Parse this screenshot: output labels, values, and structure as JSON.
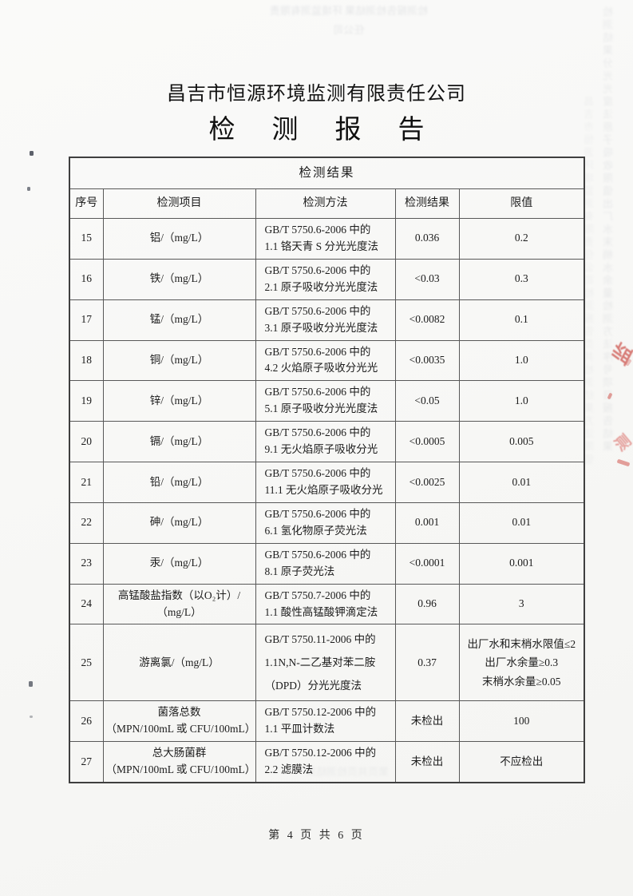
{
  "header": {
    "company": "昌吉市恒源环境监测有限责任公司",
    "report_title": "检测报告"
  },
  "table": {
    "title": "检测结果",
    "headers": [
      "序号",
      "检测项目",
      "检测方法",
      "检测结果",
      "限值"
    ],
    "rows": [
      {
        "no": "15",
        "item": "铝/（mg/L）",
        "method": "GB/T 5750.6-2006 中的\n1.1 铬天青 S 分光光度法",
        "result": "0.036",
        "limit": "0.2"
      },
      {
        "no": "16",
        "item": "铁/（mg/L）",
        "method": "GB/T 5750.6-2006 中的\n2.1 原子吸收分光光度法",
        "result": "<0.03",
        "limit": "0.3"
      },
      {
        "no": "17",
        "item": "锰/（mg/L）",
        "method": "GB/T 5750.6-2006 中的\n3.1 原子吸收分光光度法",
        "result": "<0.0082",
        "limit": "0.1"
      },
      {
        "no": "18",
        "item": "铜/（mg/L）",
        "method": "GB/T 5750.6-2006 中的\n4.2 火焰原子吸收分光光",
        "result": "<0.0035",
        "limit": "1.0"
      },
      {
        "no": "19",
        "item": "锌/（mg/L）",
        "method": "GB/T 5750.6-2006 中的\n5.1 原子吸收分光光度法",
        "result": "<0.05",
        "limit": "1.0"
      },
      {
        "no": "20",
        "item": "镉/（mg/L）",
        "method": "GB/T 5750.6-2006 中的\n9.1 无火焰原子吸收分光",
        "result": "<0.0005",
        "limit": "0.005"
      },
      {
        "no": "21",
        "item": "铅/（mg/L）",
        "method": "GB/T 5750.6-2006 中的\n11.1 无火焰原子吸收分光",
        "result": "<0.0025",
        "limit": "0.01"
      },
      {
        "no": "22",
        "item": "砷/（mg/L）",
        "method": "GB/T 5750.6-2006 中的\n6.1 氢化物原子荧光法",
        "result": "0.001",
        "limit": "0.01"
      },
      {
        "no": "23",
        "item": "汞/（mg/L）",
        "method": "GB/T 5750.6-2006 中的\n8.1 原子荧光法",
        "result": "<0.0001",
        "limit": "0.001"
      },
      {
        "no": "24",
        "item": "高锰酸盐指数（以O₂计）/\n（mg/L）",
        "method": "GB/T 5750.7-2006 中的\n1.1 酸性高锰酸钾滴定法",
        "result": "0.96",
        "limit": "3"
      },
      {
        "no": "25",
        "item": "游离氯/（mg/L）",
        "method": "GB/T 5750.11-2006 中的\n1.1N,N-二乙基对苯二胺\n（DPD）分光光度法",
        "result": "0.37",
        "limit": "出厂水和末梢水限值≤2\n出厂水余量≥0.3\n末梢水余量≥0.05"
      },
      {
        "no": "26",
        "item": "菌落总数\n（MPN/100mL 或 CFU/100mL）",
        "method": "GB/T 5750.12-2006 中的\n1.1 平皿计数法",
        "result": "未检出",
        "limit": "100"
      },
      {
        "no": "27",
        "item": "总大肠菌群\n（MPN/100mL 或 CFU/100mL）",
        "method": "GB/T 5750.12-2006 中的\n2.2 滤膜法",
        "result": "未检出",
        "limit": "不应检出"
      }
    ]
  },
  "footer": {
    "page_indicator": "第 4 页 共 6 页"
  },
  "artifacts": {
    "stamp_color": "#c73e37",
    "stamp_char_1": "监",
    "stamp_char_2": "测",
    "ghost_strip_1": "检测结果分光光度法原子吸收限值出厂水末梢水余量检测方法序号项目报告结果",
    "ghost_strip_2": "昌吉市恒源环境监测有限责任公司检测报告页共检测结果方法限值",
    "ghost_block_top": "检测报告检测结果\n环境监测有限责任公司",
    "ghost_block_bottom": "第页共页检测结果"
  }
}
